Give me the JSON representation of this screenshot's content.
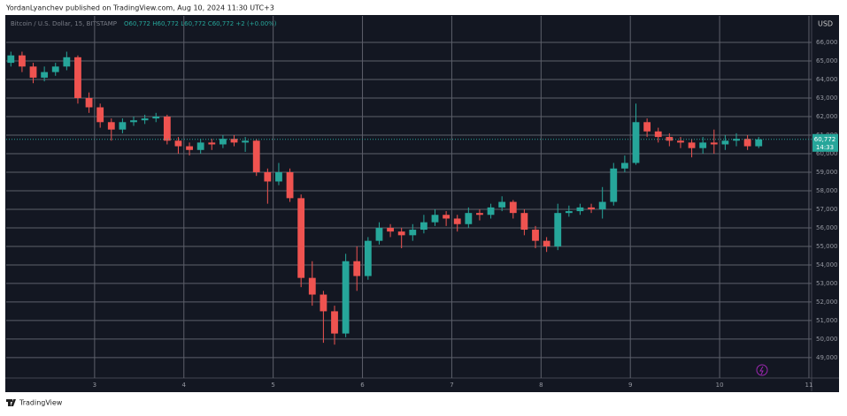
{
  "header": {
    "author_line": "YordanLyanchev published on TradingView.com, Aug 10, 2024 11:30 UTC+3",
    "brand": "TradingView"
  },
  "chart_data": {
    "type": "candlestick",
    "symbol": "Bitcoin / U.S. Dollar, 15, BITSTAMP",
    "ohlc_legend": "O60,772 H60,772 L60,772 C60,772 +2 (+0.00%)",
    "currency": "USD",
    "up_color": "#26a69a",
    "down_color": "#ef5350",
    "grid": true,
    "last_price": {
      "value": 60772,
      "label": "60,772"
    },
    "countdown": "14:33",
    "x": [
      2.0625,
      2.1875,
      2.3125,
      2.4375,
      2.5625,
      2.6875,
      2.8125,
      2.9375,
      3.0625,
      3.1875,
      3.3125,
      3.4375,
      3.5625,
      3.6875,
      3.8125,
      3.9375,
      4.0625,
      4.1875,
      4.3125,
      4.4375,
      4.5625,
      4.6875,
      4.8125,
      4.9375,
      5.0625,
      5.1875,
      5.3125,
      5.4375,
      5.5625,
      5.6875,
      5.8125,
      5.9375,
      6.0625,
      6.1875,
      6.3125,
      6.4375,
      6.5625,
      6.6875,
      6.8125,
      6.9375,
      7.0625,
      7.1875,
      7.3125,
      7.4375,
      7.5625,
      7.6875,
      7.8125,
      7.9375,
      8.0625,
      8.1875,
      8.3125,
      8.4375,
      8.5625,
      8.6875,
      8.8125,
      8.9375,
      9.0625,
      9.1875,
      9.3125,
      9.4375,
      9.5625,
      9.6875,
      9.8125,
      9.9375,
      10.0625,
      10.1875,
      10.3125,
      10.4375
    ],
    "open": [
      64900,
      65300,
      64700,
      64100,
      64400,
      64700,
      65200,
      63000,
      62500,
      61700,
      61300,
      61700,
      61800,
      61900,
      62000,
      60700,
      60400,
      60200,
      60600,
      60500,
      60800,
      60600,
      60700,
      59000,
      58500,
      59000,
      57600,
      53300,
      52400,
      51500,
      50300,
      54200,
      53400,
      55300,
      56000,
      55800,
      55600,
      55900,
      56300,
      56700,
      56500,
      56200,
      56800,
      56700,
      57100,
      57400,
      56800,
      55900,
      55300,
      55000,
      56800,
      56900,
      57100,
      57000,
      57400,
      59200,
      59500,
      61700,
      61200,
      60900,
      60700,
      60600,
      60300,
      60600,
      60500,
      60700,
      60800,
      60400
    ],
    "high": [
      65500,
      65500,
      64900,
      64700,
      64900,
      65500,
      65300,
      63300,
      62700,
      61900,
      61900,
      62000,
      62100,
      62200,
      62100,
      60900,
      60600,
      60800,
      60800,
      61000,
      61000,
      60900,
      60800,
      59200,
      59500,
      59200,
      57800,
      54200,
      52600,
      51800,
      54600,
      55000,
      55500,
      56300,
      56200,
      56000,
      56200,
      56700,
      57000,
      56900,
      56700,
      57100,
      57000,
      57300,
      57700,
      57500,
      57000,
      56100,
      55500,
      57300,
      57200,
      57300,
      57300,
      58200,
      59500,
      59900,
      62700,
      61900,
      61400,
      61100,
      60900,
      60800,
      60900,
      61300,
      61000,
      61100,
      61000,
      60900
    ],
    "low": [
      64700,
      64400,
      63800,
      63900,
      64200,
      64500,
      62700,
      62200,
      61400,
      60700,
      61100,
      61500,
      61600,
      61700,
      60500,
      60000,
      59900,
      60000,
      60200,
      60300,
      60400,
      60100,
      58800,
      57300,
      58300,
      57400,
      52800,
      51800,
      49800,
      49700,
      50100,
      52600,
      53200,
      55100,
      55500,
      54900,
      55300,
      55700,
      56100,
      56100,
      55800,
      56000,
      56400,
      56500,
      56900,
      56500,
      55600,
      54900,
      54700,
      54800,
      56600,
      56700,
      56800,
      56500,
      57200,
      59000,
      59400,
      60900,
      60600,
      60400,
      60300,
      59800,
      60000,
      60000,
      60200,
      60400,
      60200,
      60300
    ],
    "close": [
      65300,
      64700,
      64100,
      64400,
      64700,
      65200,
      63000,
      62500,
      61700,
      61300,
      61700,
      61800,
      61900,
      62000,
      60700,
      60400,
      60200,
      60600,
      60500,
      60800,
      60600,
      60700,
      59000,
      58500,
      59000,
      57600,
      53300,
      52400,
      51500,
      50300,
      54200,
      53400,
      55300,
      56000,
      55800,
      55600,
      55900,
      56300,
      56700,
      56500,
      56200,
      56800,
      56700,
      57100,
      57400,
      56800,
      55900,
      55300,
      55000,
      56800,
      56900,
      57100,
      57000,
      57400,
      59200,
      59500,
      61700,
      61200,
      60900,
      60700,
      60600,
      60300,
      60600,
      60500,
      60700,
      60800,
      60400,
      60772
    ],
    "xlim": [
      2.01,
      11.03
    ],
    "xticks": [
      3,
      4,
      5,
      6,
      7,
      8,
      9,
      10,
      11
    ],
    "ylim": [
      47900,
      67430
    ],
    "yticks": [
      {
        "value": 49000,
        "label": "49,000"
      },
      {
        "value": 50000,
        "label": "50,000"
      },
      {
        "value": 51000,
        "label": "51,000"
      },
      {
        "value": 52000,
        "label": "52,000"
      },
      {
        "value": 53000,
        "label": "53,000"
      },
      {
        "value": 54000,
        "label": "54,000"
      },
      {
        "value": 55000,
        "label": "55,000"
      },
      {
        "value": 56000,
        "label": "56,000"
      },
      {
        "value": 57000,
        "label": "57,000"
      },
      {
        "value": 58000,
        "label": "58,000"
      },
      {
        "value": 59000,
        "label": "59,000"
      },
      {
        "value": 60000,
        "label": "60,000"
      },
      {
        "value": 61000,
        "label": "61,000"
      },
      {
        "value": 62000,
        "label": "62,000"
      },
      {
        "value": 63000,
        "label": "63,000"
      },
      {
        "value": 64000,
        "label": "64,000"
      },
      {
        "value": 65000,
        "label": "65,000"
      },
      {
        "value": 66000,
        "label": "66,000"
      }
    ]
  }
}
